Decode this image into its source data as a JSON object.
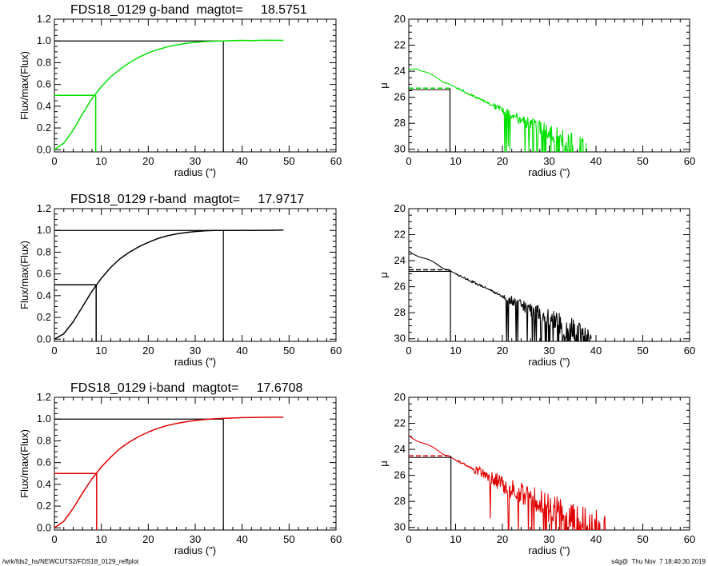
{
  "footer": {
    "left": "/wrk/fds2_hs/NEWCUTS2/FDS18_0129_reffplot",
    "right": "s4g@  Thu Nov  7 18:40:30 2019"
  },
  "colors": {
    "g": "#00e000",
    "r": "#000000",
    "i": "#e00000",
    "axes": "#000000"
  },
  "chart_data": [
    {
      "type": "line",
      "band": "g",
      "title": "FDS18_0129 g-band  magtot=     18.5751",
      "xlabel": "radius (\")",
      "ylabel": "Flux/max(Flux)",
      "xlim": [
        0,
        60
      ],
      "ylim": [
        -0.02,
        1.2
      ],
      "xticks": [
        0,
        10,
        20,
        30,
        40,
        50,
        60
      ],
      "yticks": [
        0.0,
        0.2,
        0.4,
        0.6,
        0.8,
        1.0,
        1.2
      ],
      "ytick_labels": [
        "0.0",
        "0.2",
        "0.4",
        "0.6",
        "0.8",
        "1.0",
        "1.2"
      ],
      "reff": 8.8,
      "rtot": 36.0,
      "rmax": 48.8,
      "x": [
        0,
        2,
        4,
        6,
        8,
        10,
        12,
        14,
        16,
        18,
        20,
        22,
        24,
        26,
        28,
        30,
        32,
        34,
        36,
        38,
        40,
        42,
        44,
        46,
        48.8
      ],
      "values": [
        0.0,
        0.06,
        0.18,
        0.33,
        0.47,
        0.58,
        0.67,
        0.74,
        0.8,
        0.85,
        0.89,
        0.92,
        0.945,
        0.963,
        0.977,
        0.987,
        0.994,
        0.998,
        1.0,
        1.003,
        1.005,
        1.004,
        1.006,
        1.006,
        1.005
      ]
    },
    {
      "type": "line",
      "band": "g",
      "title": "",
      "xlabel": "radius (\")",
      "ylabel": "μ",
      "xlim": [
        0,
        60
      ],
      "ylim": [
        30.2,
        20
      ],
      "yreversed": true,
      "xticks": [
        0,
        10,
        20,
        30,
        40,
        50,
        60
      ],
      "yticks": [
        20,
        22,
        24,
        26,
        28,
        30
      ],
      "mu_eff": 25.3,
      "reff": 8.8,
      "profile": {
        "mu0": 23.85,
        "peak": [
          2,
          23.82
        ],
        "slope": 0.176,
        "noise_start": 18,
        "noise_amp": 0.5,
        "rmax": 38
      }
    },
    {
      "type": "line",
      "band": "r",
      "title": "FDS18_0129 r-band  magtot=     17.9717",
      "xlabel": "radius (\")",
      "ylabel": "Flux/max(Flux)",
      "xlim": [
        0,
        60
      ],
      "ylim": [
        -0.02,
        1.2
      ],
      "xticks": [
        0,
        10,
        20,
        30,
        40,
        50,
        60
      ],
      "yticks": [
        0.0,
        0.2,
        0.4,
        0.6,
        0.8,
        1.0,
        1.2
      ],
      "ytick_labels": [
        "0.0",
        "0.2",
        "0.4",
        "0.6",
        "0.8",
        "1.0",
        "1.2"
      ],
      "reff": 8.9,
      "rtot": 36.0,
      "rmax": 48.8,
      "x": [
        0,
        2,
        4,
        6,
        8,
        10,
        12,
        14,
        16,
        18,
        20,
        22,
        24,
        26,
        28,
        30,
        32,
        34,
        36,
        38,
        40,
        42,
        44,
        46,
        48.8
      ],
      "values": [
        0.0,
        0.05,
        0.16,
        0.3,
        0.44,
        0.56,
        0.66,
        0.74,
        0.8,
        0.85,
        0.89,
        0.925,
        0.95,
        0.968,
        0.98,
        0.99,
        0.996,
        0.999,
        1.0,
        1.0,
        1.001,
        1.0,
        1.001,
        1.001,
        1.003
      ]
    },
    {
      "type": "line",
      "band": "r",
      "title": "",
      "xlabel": "radius (\")",
      "ylabel": "μ",
      "xlim": [
        0,
        60
      ],
      "ylim": [
        30.2,
        20
      ],
      "yreversed": true,
      "xticks": [
        0,
        10,
        20,
        30,
        40,
        50,
        60
      ],
      "yticks": [
        20,
        22,
        24,
        26,
        28,
        30
      ],
      "mu_eff": 24.7,
      "reff": 8.9,
      "profile": {
        "mu0": 23.25,
        "peak": [
          0,
          23.25
        ],
        "slope": 0.174,
        "noise_start": 20,
        "noise_amp": 0.6,
        "rmax": 39
      }
    },
    {
      "type": "line",
      "band": "i",
      "title": "FDS18_0129 i-band  magtot=     17.6708",
      "xlabel": "radius (\")",
      "ylabel": "Flux/max(Flux)",
      "xlim": [
        0,
        60
      ],
      "ylim": [
        -0.02,
        1.2
      ],
      "xticks": [
        0,
        10,
        20,
        30,
        40,
        50,
        60
      ],
      "yticks": [
        0.0,
        0.2,
        0.4,
        0.6,
        0.8,
        1.0,
        1.2
      ],
      "ytick_labels": [
        "0.0",
        "0.2",
        "0.4",
        "0.6",
        "0.8",
        "1.0",
        "1.2"
      ],
      "reff": 9.0,
      "rtot": 36.0,
      "rmax": 48.8,
      "x": [
        0,
        2,
        4,
        6,
        8,
        10,
        12,
        14,
        16,
        18,
        20,
        22,
        24,
        26,
        28,
        30,
        32,
        34,
        36,
        38,
        40,
        42,
        44,
        46,
        48.8
      ],
      "values": [
        0.0,
        0.06,
        0.18,
        0.32,
        0.45,
        0.56,
        0.65,
        0.73,
        0.79,
        0.84,
        0.88,
        0.915,
        0.94,
        0.96,
        0.975,
        0.987,
        0.996,
        1.002,
        1.007,
        1.01,
        1.013,
        1.015,
        1.016,
        1.017,
        1.017
      ]
    },
    {
      "type": "line",
      "band": "i",
      "title": "",
      "xlabel": "radius (\")",
      "ylabel": "μ",
      "xlim": [
        0,
        60
      ],
      "ylim": [
        30.2,
        20
      ],
      "yreversed": true,
      "xticks": [
        0,
        10,
        20,
        30,
        40,
        50,
        60
      ],
      "yticks": [
        20,
        22,
        24,
        26,
        28,
        30
      ],
      "mu_eff": 24.5,
      "reff": 9.0,
      "profile": {
        "mu0": 22.95,
        "peak": [
          0,
          22.95
        ],
        "slope": 0.185,
        "noise_start": 14,
        "noise_amp": 0.9,
        "rmax": 42
      }
    }
  ]
}
